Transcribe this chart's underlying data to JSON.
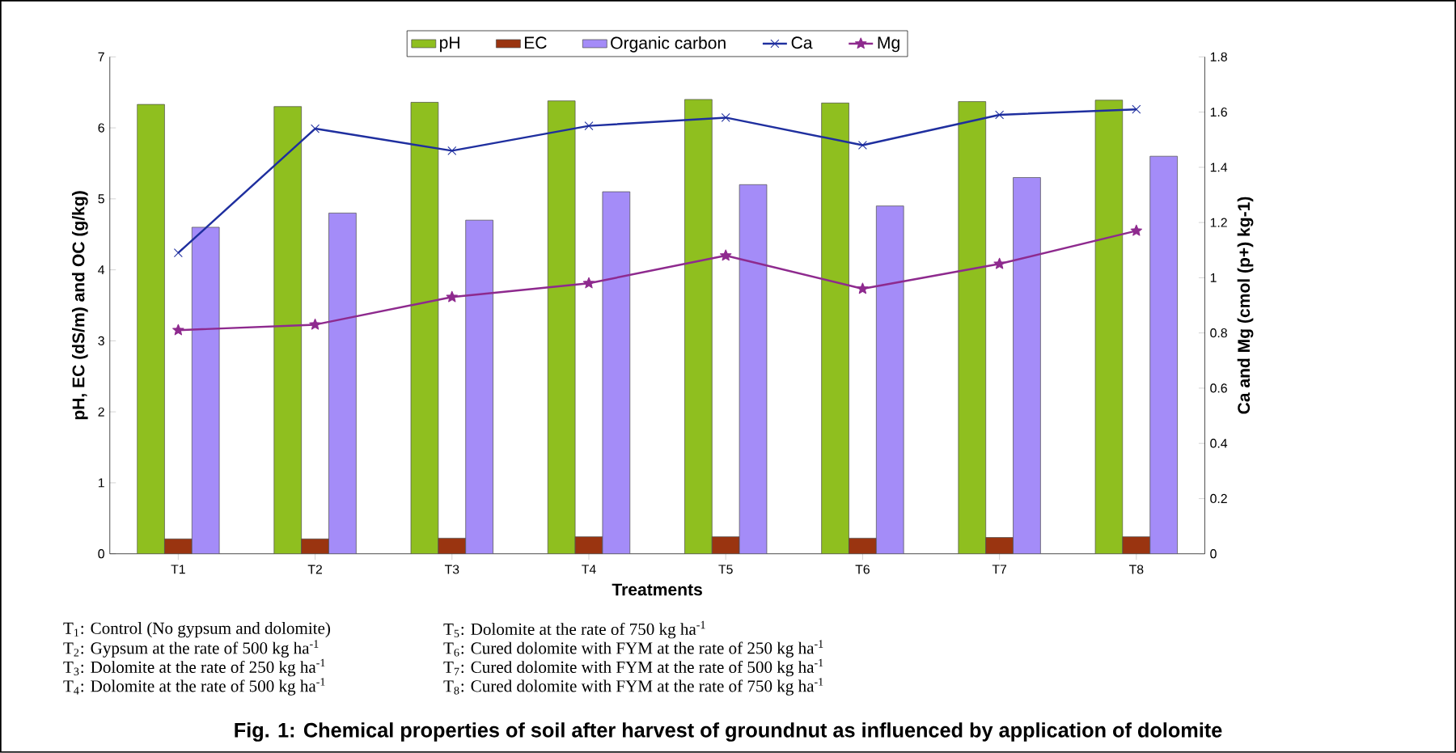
{
  "chart_data": {
    "type": "bar",
    "title": "Fig. 1: Chemical properties of soil after harvest of groundnut as influenced by application of dolomite",
    "xlabel": "Treatments",
    "ylabel": "pH, EC (dS/m) and OC (g/kg)",
    "y2label": "Ca and Mg (cmol (p+) kg-1)",
    "categories": [
      "T1",
      "T2",
      "T3",
      "T4",
      "T5",
      "T6",
      "T7",
      "T8"
    ],
    "series": [
      {
        "name": "pH",
        "color": "#8fbf1f",
        "values": [
          6.33,
          6.3,
          6.36,
          6.38,
          6.4,
          6.35,
          6.37,
          6.39
        ]
      },
      {
        "name": "EC",
        "color": "#9a3410",
        "values": [
          0.21,
          0.21,
          0.22,
          0.24,
          0.24,
          0.22,
          0.23,
          0.24
        ]
      },
      {
        "name": "Organic carbon",
        "color": "#a48cf8",
        "values": [
          4.6,
          4.8,
          4.7,
          5.1,
          5.2,
          4.9,
          5.3,
          5.6
        ]
      },
      {
        "name": "Ca",
        "type": "line",
        "axis": "y2",
        "marker": "cross",
        "color": "#1f2f9f",
        "values": [
          1.09,
          1.54,
          1.46,
          1.55,
          1.58,
          1.48,
          1.59,
          1.61
        ]
      },
      {
        "name": "Mg",
        "type": "line",
        "axis": "y2",
        "marker": "star",
        "color": "#8e2a8e",
        "values": [
          0.81,
          0.83,
          0.93,
          0.98,
          1.08,
          0.96,
          1.05,
          1.17
        ]
      }
    ],
    "ylim": [
      0,
      7
    ],
    "yticks": [
      0,
      1,
      2,
      3,
      4,
      5,
      6,
      7
    ],
    "y2lim": [
      0,
      1.8
    ],
    "y2ticks": [
      0,
      0.2,
      0.4,
      0.6,
      0.8,
      1,
      1.2,
      1.4,
      1.6,
      1.8
    ],
    "legend": "top",
    "annotations": [
      "T$_{1}$: Control (No gypsum and dolomite)",
      "T$_{2}$: Gypsum at the rate of 500 kg ha$^{-1}$",
      "T$_{3}$: Dolomite at the rate of 250 kg ha$^{-1}$",
      "T$_{4}$: Dolomite at the rate of 500 kg ha$^{-1}$",
      "T$_{5}$: Dolomite at the rate of 750 kg ha$^{-1}$",
      "T$_{6}$: Cured dolomite with FYM at the rate of 250 kg ha$^{-1}$",
      "T$_{7}$: Cured dolomite with FYM at the rate of 500 kg ha$^{-1}$",
      "T$_{8}$: Cured dolomite with FYM at the rate of 750 kg ha$^{-1}$"
    ]
  }
}
